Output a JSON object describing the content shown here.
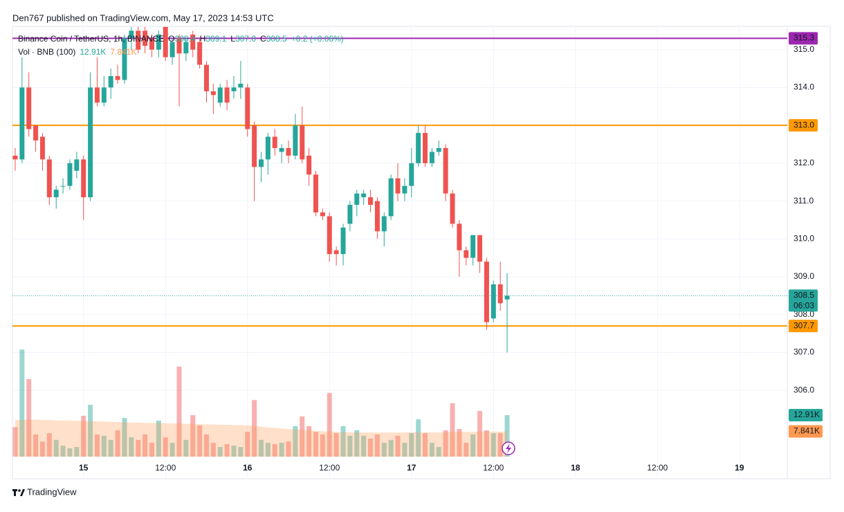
{
  "header": "Den767 published on TradingView.com, May 17, 2023 14:53 UTC",
  "footer": "TradingView",
  "chart_data": {
    "type": "candlestick",
    "legend": {
      "symbol": "Binance Coin / TetherUS, 1h, BINANCE",
      "o_label": "O",
      "o": "308.4",
      "h_label": "H",
      "h": "309.1",
      "l_label": "L",
      "l": "307.0",
      "c_label": "C",
      "c": "308.5",
      "change": "+0.2 (+0.06%)"
    },
    "up_color": "#26a69a",
    "down_color": "#ef5350",
    "xlim": [
      -0.4,
      113.0
    ],
    "xticks": [
      {
        "value": 10,
        "label": "15"
      },
      {
        "value": 22,
        "label": "12:00"
      },
      {
        "value": 34,
        "label": "16"
      },
      {
        "value": 46,
        "label": "12:00"
      },
      {
        "value": 58,
        "label": "17"
      },
      {
        "value": 70,
        "label": "12:00"
      },
      {
        "value": 82,
        "label": "18"
      },
      {
        "value": 94,
        "label": "12:00"
      },
      {
        "value": 106,
        "label": "19"
      }
    ],
    "ylim": [
      303.7,
      315.58
    ],
    "yticks": [
      {
        "value": 306,
        "label": "306.0"
      },
      {
        "value": 307,
        "label": "307.0"
      },
      {
        "value": 308,
        "label": "308.0"
      },
      {
        "value": 309,
        "label": "309.0"
      },
      {
        "value": 310,
        "label": "310.0"
      },
      {
        "value": 311,
        "label": "311.0"
      },
      {
        "value": 312,
        "label": "312.0"
      },
      {
        "value": 313,
        "label": "313.0"
      },
      {
        "value": 314,
        "label": "314.0"
      },
      {
        "value": 315,
        "label": "315.0"
      }
    ],
    "grid": true,
    "candles": {
      "open": [
        312.2,
        312.1,
        314.0,
        313.0,
        312.7,
        312.1,
        311.1,
        311.4,
        311.4,
        311.8,
        312.1,
        311.1,
        314.0,
        313.6,
        314.0,
        314.3,
        314.2,
        315.3,
        315.5,
        315.5,
        315.3,
        315.0,
        315.6,
        314.8,
        315.3,
        314.9,
        315.4,
        315.2,
        314.6,
        313.9,
        313.6,
        314.0,
        313.9,
        314.0,
        314.0,
        313.0,
        311.9,
        312.1,
        312.7,
        312.3,
        312.4,
        312.2,
        313.0,
        312.2,
        311.7,
        310.7,
        310.6,
        309.7,
        309.6,
        310.4,
        310.9,
        311.1,
        311.1,
        311.0,
        310.2,
        310.6,
        311.6,
        311.2,
        311.4,
        312.0,
        312.8,
        312.0,
        312.3,
        312.4,
        311.2,
        310.4,
        309.7,
        309.5,
        310.1,
        309.4,
        307.9,
        308.8,
        308.4
      ],
      "high": [
        312.4,
        314.8,
        314.4,
        313.0,
        312.8,
        312.2,
        311.4,
        311.6,
        312.1,
        312.3,
        312.2,
        314.4,
        314.8,
        314.3,
        314.5,
        314.6,
        315.4,
        315.6,
        315.6,
        315.6,
        315.4,
        315.5,
        315.6,
        315.3,
        315.4,
        315.3,
        315.5,
        315.3,
        314.7,
        314.1,
        314.1,
        314.2,
        314.3,
        314.7,
        314.1,
        313.1,
        312.3,
        312.8,
        312.9,
        312.5,
        312.6,
        313.3,
        313.5,
        312.4,
        311.8,
        310.8,
        310.7,
        309.8,
        310.4,
        311.0,
        311.3,
        311.3,
        311.3,
        311.1,
        310.7,
        311.7,
        312.0,
        311.6,
        312.4,
        313.0,
        313.0,
        312.4,
        312.6,
        312.5,
        311.3,
        310.5,
        309.8,
        310.1,
        310.1,
        309.5,
        308.9,
        309.4,
        309.1
      ],
      "low": [
        311.8,
        312.0,
        312.7,
        312.3,
        311.8,
        310.9,
        310.8,
        311.2,
        311.3,
        311.6,
        310.5,
        311.0,
        313.5,
        313.5,
        313.7,
        314.1,
        314.1,
        315.0,
        314.9,
        314.9,
        314.8,
        314.8,
        314.7,
        314.6,
        313.5,
        314.7,
        314.8,
        314.5,
        313.6,
        313.3,
        313.5,
        313.4,
        313.7,
        313.7,
        312.7,
        311.0,
        311.5,
        311.7,
        312.2,
        312.0,
        312.0,
        312.1,
        312.0,
        311.4,
        310.6,
        310.5,
        309.4,
        309.3,
        309.3,
        310.2,
        310.6,
        310.9,
        310.7,
        310.0,
        309.8,
        310.5,
        311.0,
        311.0,
        311.1,
        311.9,
        311.9,
        311.9,
        312.2,
        311.0,
        310.3,
        309.0,
        309.3,
        309.3,
        309.1,
        307.6,
        307.8,
        308.1,
        307.0
      ],
      "close": [
        312.1,
        314.0,
        312.9,
        312.6,
        312.1,
        311.1,
        311.3,
        311.4,
        312.0,
        312.1,
        311.1,
        314.0,
        313.6,
        314.0,
        314.3,
        314.2,
        315.3,
        315.5,
        315.0,
        315.1,
        315.0,
        315.4,
        314.8,
        315.2,
        314.9,
        315.2,
        315.0,
        314.6,
        313.9,
        313.8,
        314.0,
        313.6,
        314.0,
        314.1,
        312.9,
        311.9,
        312.1,
        312.7,
        312.4,
        312.4,
        312.2,
        313.0,
        312.1,
        311.7,
        310.7,
        310.6,
        309.6,
        309.6,
        310.3,
        310.9,
        311.2,
        311.2,
        310.9,
        310.2,
        310.6,
        311.6,
        311.2,
        311.4,
        312.0,
        312.8,
        312.0,
        312.3,
        312.4,
        311.2,
        310.4,
        309.7,
        309.5,
        310.1,
        309.4,
        307.8,
        308.8,
        308.3,
        308.5
      ]
    },
    "volume": {
      "name": "Vol · BNB (100)",
      "value_label": "12.91K",
      "ma_label": "7.841K",
      "ma_color": "#ff9850",
      "values": [
        9.2,
        33.3,
        24.1,
        6.9,
        4.7,
        7.3,
        5.2,
        3.4,
        2.6,
        3.0,
        12.7,
        16.1,
        6.9,
        6.5,
        5.2,
        8.2,
        12.0,
        6.0,
        5.2,
        6.9,
        4.3,
        11.2,
        6.0,
        4.3,
        28,
        5.2,
        12.9,
        9.7,
        6.9,
        4.3,
        3.0,
        3.9,
        3.4,
        3.0,
        7.7,
        17.6,
        5.2,
        4.3,
        3.9,
        4.3,
        4.7,
        9.5,
        12.5,
        9.5,
        7.7,
        6.9,
        19.8,
        7.3,
        9.5,
        6.5,
        8.2,
        6.5,
        5.6,
        6.9,
        4.3,
        5.2,
        6.5,
        4.3,
        7.3,
        11.6,
        7.3,
        4.3,
        3.0,
        8.2,
        16.6,
        8.6,
        4.3,
        6.9,
        14.2,
        8.2,
        7.3,
        7.3,
        12.91
      ],
      "ma": [
        11.4,
        11.4,
        11.5,
        11.5,
        11.4,
        11.4,
        11.3,
        11.2,
        11.2,
        11.1,
        11.1,
        11.0,
        11.0,
        10.9,
        10.8,
        10.8,
        10.7,
        10.6,
        10.6,
        10.5,
        10.5,
        10.4,
        10.4,
        10.3,
        10.3,
        10.2,
        10.2,
        10.1,
        10.0,
        10.0,
        9.9,
        9.9,
        9.8,
        9.8,
        9.7,
        9.5,
        9.3,
        9.1,
        8.9,
        8.8,
        8.6,
        8.5,
        8.3,
        8.2,
        8.0,
        7.9,
        7.8,
        7.7,
        7.6,
        7.6,
        7.5,
        7.5,
        7.5,
        7.5,
        7.5,
        7.5,
        7.5,
        7.5,
        7.6,
        7.6,
        7.6,
        7.6,
        7.6,
        7.6,
        7.7,
        7.7,
        7.7,
        7.7,
        7.8,
        7.8,
        7.8,
        7.8,
        7.841
      ]
    },
    "levels": [
      {
        "value": 315.3,
        "label": "315.3",
        "color": "#9c27b0"
      },
      {
        "value": 313.0,
        "label": "313.0",
        "color": "#ff9800"
      },
      {
        "value": 307.7,
        "label": "307.7",
        "color": "#ff9800"
      }
    ],
    "last_price": {
      "value": 308.5,
      "label": "308.5",
      "countdown": "06:03"
    }
  }
}
